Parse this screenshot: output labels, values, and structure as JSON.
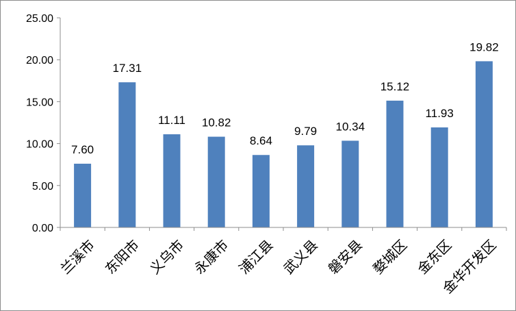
{
  "chart_data": {
    "type": "bar",
    "categories": [
      "兰溪市",
      "东阳市",
      "义乌市",
      "永康市",
      "浦江县",
      "武义县",
      "磐安县",
      "婺城区",
      "金东区",
      "金华开发区"
    ],
    "values": [
      7.6,
      17.31,
      11.11,
      10.82,
      8.64,
      9.79,
      10.34,
      15.12,
      11.93,
      19.82
    ],
    "data_labels": [
      "7.60",
      "17.31",
      "11.11",
      "10.82",
      "8.64",
      "9.79",
      "10.34",
      "15.12",
      "11.93",
      "19.82"
    ],
    "y_ticks": [
      "0.00",
      "5.00",
      "10.00",
      "15.00",
      "20.00",
      "25.00"
    ],
    "ylim": [
      0,
      25
    ],
    "title": "",
    "xlabel": "",
    "ylabel": "",
    "grid": false,
    "legend": "none",
    "colors": {
      "bar": "#4f81bd",
      "axis": "#8c8c8c",
      "frame": "#8c8c8c"
    }
  }
}
